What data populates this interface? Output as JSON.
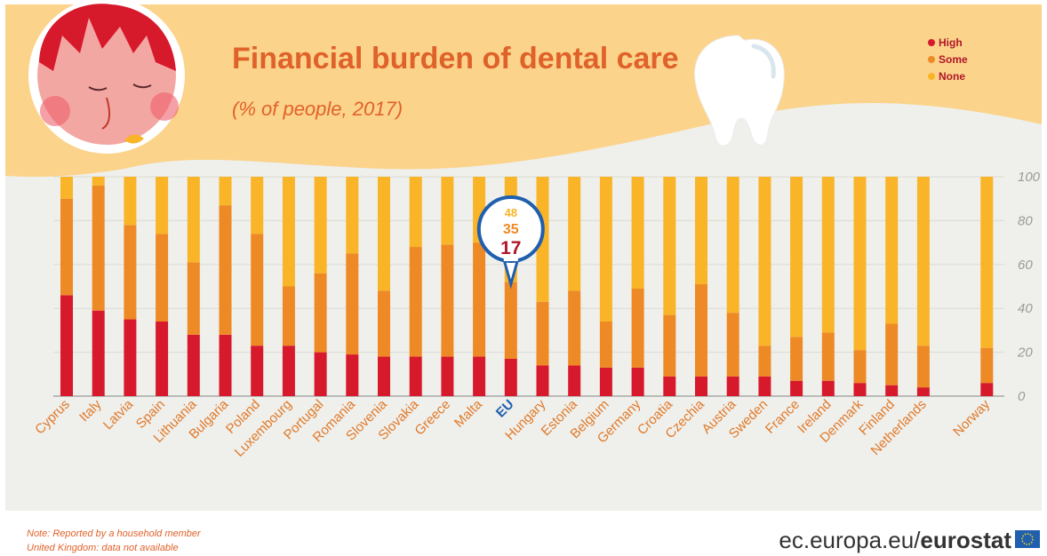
{
  "chart_data": {
    "type": "bar",
    "stacked": true,
    "title": "Financial burden of dental care",
    "subtitle": "(% of people, 2017)",
    "categories": [
      "Cyprus",
      "Italy",
      "Latvia",
      "Spain",
      "Lithuania",
      "Bulgaria",
      "Poland",
      "Luxembourg",
      "Portugal",
      "Romania",
      "Slovenia",
      "Slovakia",
      "Greece",
      "Malta",
      "EU",
      "Hungary",
      "Estonia",
      "Belgium",
      "Germany",
      "Croatia",
      "Czechia",
      "Austria",
      "Sweden",
      "France",
      "Ireland",
      "Denmark",
      "Finland",
      "Netherlands",
      "Norway"
    ],
    "series": [
      {
        "name": "High",
        "color": "#d7192c",
        "values": [
          46,
          39,
          35,
          34,
          28,
          28,
          23,
          23,
          20,
          19,
          18,
          18,
          18,
          18,
          17,
          14,
          14,
          13,
          13,
          9,
          9,
          9,
          9,
          7,
          7,
          6,
          5,
          4,
          6
        ]
      },
      {
        "name": "Some",
        "color": "#ee8a26",
        "values": [
          44,
          57,
          43,
          40,
          33,
          59,
          51,
          27,
          36,
          46,
          30,
          50,
          51,
          52,
          35,
          29,
          34,
          21,
          36,
          28,
          42,
          29,
          14,
          20,
          22,
          15,
          28,
          19,
          16
        ]
      },
      {
        "name": "None",
        "color": "#f9b428",
        "values": [
          10,
          4,
          22,
          26,
          39,
          13,
          26,
          50,
          44,
          35,
          52,
          32,
          31,
          30,
          48,
          57,
          52,
          66,
          51,
          63,
          49,
          62,
          77,
          73,
          71,
          79,
          67,
          77,
          78
        ]
      }
    ],
    "ylim": [
      0,
      100
    ],
    "yticks": [
      0,
      20,
      40,
      60,
      80,
      100
    ],
    "highlight": {
      "category": "EU",
      "labels": [
        "48",
        "35",
        "17"
      ]
    },
    "legend": {
      "position": "top-right",
      "entries": [
        "High",
        "Some",
        "None"
      ]
    }
  },
  "notes": [
    "Note: Reported by a household member",
    "United Kingdom: data not available"
  ],
  "source": {
    "prefix": "ec.europa.eu/",
    "brand": "eurostat"
  },
  "colors": {
    "accent": "#e0622b",
    "header_bg": "#fbd38a",
    "plot_bg": "#efefeb",
    "eu_blue": "#1f5fae"
  },
  "icons": [
    "sad-face-illustration",
    "tooth-illustration",
    "eu-flag-icon"
  ]
}
